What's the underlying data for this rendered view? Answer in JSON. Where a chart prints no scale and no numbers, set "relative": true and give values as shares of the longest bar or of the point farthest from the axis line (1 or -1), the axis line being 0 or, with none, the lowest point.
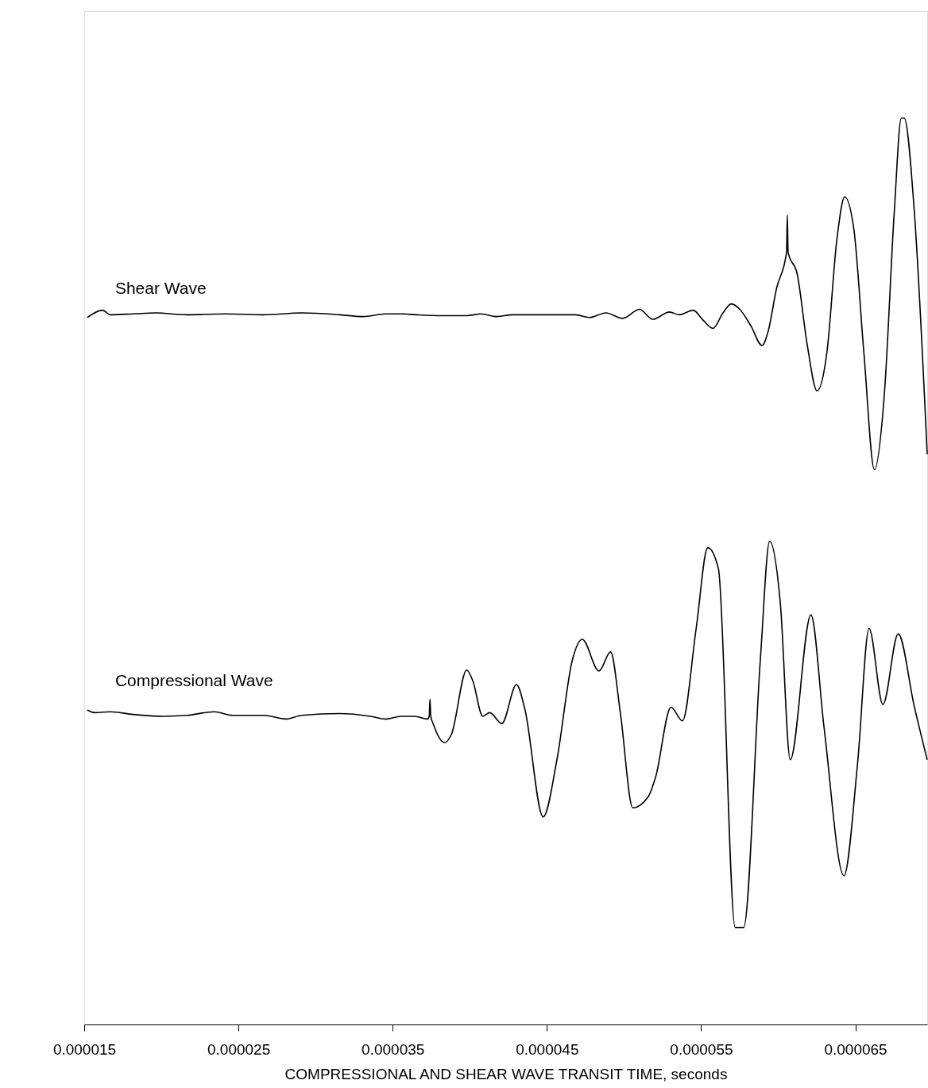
{
  "chart_data": {
    "type": "line",
    "relative": true,
    "xlabel": "COMPRESSIONAL AND SHEAR WAVE TRANSIT TIME, seconds",
    "xlim": [
      1.5e-05,
      6.966e-05
    ],
    "xticks": [
      {
        "value": 1.5e-05,
        "label": "0.000015"
      },
      {
        "value": 2.5e-05,
        "label": "0.000025"
      },
      {
        "value": 3.5e-05,
        "label": "0.000035"
      },
      {
        "value": 4.5e-05,
        "label": "0.000045"
      },
      {
        "value": 5.5e-05,
        "label": "0.000055"
      },
      {
        "value": 6.5e-05,
        "label": "0.000065"
      }
    ],
    "grid": false,
    "legend": false,
    "marker": "none",
    "line_style": "solid",
    "series": [
      {
        "name": "Shear Wave",
        "color": "#000000",
        "x": [
          1.52e-05,
          1.619e-05,
          1.669e-05,
          1.817e-05,
          1.966e-05,
          2.165e-05,
          2.413e-05,
          2.661e-05,
          2.909e-05,
          3.157e-05,
          3.306e-05,
          3.454e-05,
          3.554e-05,
          3.653e-05,
          3.816e-05,
          3.98e-05,
          4.074e-05,
          4.174e-05,
          4.273e-05,
          4.531e-05,
          4.685e-05,
          4.774e-05,
          4.883e-05,
          4.992e-05,
          5.101e-05,
          5.186e-05,
          5.295e-05,
          5.359e-05,
          5.448e-05,
          5.513e-05,
          5.577e-05,
          5.642e-05,
          5.696e-05,
          5.751e-05,
          5.825e-05,
          5.895e-05,
          5.935e-05,
          5.989e-05,
          6.054e-05,
          6.059e-05,
          6.064e-05,
          6.123e-05,
          6.188e-05,
          6.252e-05,
          6.316e-05,
          6.381e-05,
          6.431e-05,
          6.49e-05,
          6.555e-05,
          6.624e-05,
          6.688e-05,
          6.753e-05,
          6.798e-05,
          6.817e-05,
          6.882e-05,
          6.966e-05
        ],
        "values": [
          0.78,
          0.788,
          0.783,
          0.784,
          0.785,
          0.783,
          0.784,
          0.783,
          0.785,
          0.783,
          0.781,
          0.784,
          0.784,
          0.783,
          0.782,
          0.782,
          0.784,
          0.781,
          0.783,
          0.783,
          0.783,
          0.78,
          0.785,
          0.779,
          0.789,
          0.778,
          0.786,
          0.783,
          0.788,
          0.777,
          0.768,
          0.785,
          0.795,
          0.789,
          0.77,
          0.749,
          0.765,
          0.812,
          0.852,
          0.893,
          0.852,
          0.828,
          0.75,
          0.699,
          0.742,
          0.867,
          0.913,
          0.878,
          0.742,
          0.612,
          0.695,
          0.898,
          1.0,
          1.0,
          0.898,
          0.629
        ]
      },
      {
        "name": "Compressional Wave",
        "color": "#000000",
        "x": [
          1.52e-05,
          1.569e-05,
          1.669e-05,
          1.817e-05,
          2.016e-05,
          2.165e-05,
          2.343e-05,
          2.462e-05,
          2.661e-05,
          2.81e-05,
          2.909e-05,
          3.157e-05,
          3.355e-05,
          3.454e-05,
          3.554e-05,
          3.643e-05,
          3.727e-05,
          3.737e-05,
          3.742e-05,
          3.747e-05,
          3.762e-05,
          3.836e-05,
          3.881e-05,
          3.98e-05,
          4.02e-05,
          4.084e-05,
          4.129e-05,
          4.208e-05,
          4.303e-05,
          4.357e-05,
          4.476e-05,
          4.565e-05,
          4.665e-05,
          4.729e-05,
          4.838e-05,
          4.913e-05,
          4.977e-05,
          5.057e-05,
          5.156e-05,
          5.205e-05,
          5.305e-05,
          5.379e-05,
          5.468e-05,
          5.543e-05,
          5.612e-05,
          5.721e-05,
          5.776e-05,
          5.885e-05,
          5.944e-05,
          6.014e-05,
          6.078e-05,
          6.212e-05,
          6.297e-05,
          6.426e-05,
          6.515e-05,
          6.589e-05,
          6.679e-05,
          6.778e-05,
          6.882e-05,
          6.966e-05
        ],
        "values": [
          0.347,
          0.344,
          0.345,
          0.342,
          0.34,
          0.341,
          0.345,
          0.341,
          0.341,
          0.337,
          0.341,
          0.343,
          0.34,
          0.337,
          0.34,
          0.34,
          0.337,
          0.34,
          0.359,
          0.34,
          0.332,
          0.311,
          0.32,
          0.391,
          0.379,
          0.34,
          0.344,
          0.332,
          0.375,
          0.348,
          0.229,
          0.292,
          0.402,
          0.425,
          0.39,
          0.411,
          0.343,
          0.239,
          0.251,
          0.273,
          0.35,
          0.335,
          0.437,
          0.526,
          0.503,
          0.107,
          0.107,
          0.405,
          0.533,
          0.464,
          0.292,
          0.452,
          0.328,
          0.164,
          0.289,
          0.437,
          0.353,
          0.431,
          0.351,
          0.292
        ]
      }
    ]
  }
}
